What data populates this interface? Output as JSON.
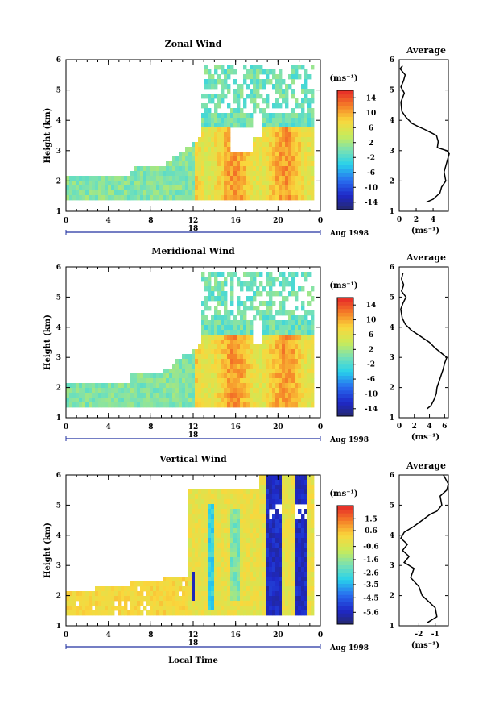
{
  "chart_data": [
    {
      "type": "heatmap",
      "title": "Zonal Wind",
      "ylabel": "Height (km)",
      "ylim": [
        1,
        6
      ],
      "yticks": [
        "1",
        "2",
        "3",
        "4",
        "5",
        "6"
      ],
      "xticks": [
        "0",
        "4",
        "8",
        "12",
        "16",
        "20",
        "0"
      ],
      "date_label": "18",
      "date_suffix": "Aug 1998",
      "colorbar": {
        "unit": "(ms⁻¹)",
        "min": -16,
        "max": 16,
        "ticks": [
          "14",
          "10",
          "6",
          "2",
          "-2",
          "-6",
          "-10",
          "-14"
        ],
        "tick_values": [
          14,
          10,
          6,
          2,
          -2,
          -6,
          -10,
          -14
        ]
      },
      "average_profile": {
        "title": "Average",
        "xlabel": "(ms⁻¹)",
        "xticks": [
          "0",
          "2",
          "4"
        ],
        "xtick_values": [
          0,
          2,
          4
        ],
        "xlim": [
          0,
          5.8
        ],
        "height": [
          1.3,
          1.4,
          1.6,
          1.8,
          2.0,
          2.3,
          2.6,
          2.9,
          3.0,
          3.1,
          3.3,
          3.5,
          3.6,
          3.7,
          3.8,
          3.9,
          4.1,
          4.3,
          4.6,
          4.9,
          5.1,
          5.3,
          5.5,
          5.7,
          5.8
        ],
        "speed": [
          3.2,
          4.0,
          4.8,
          5.0,
          5.5,
          5.3,
          5.6,
          5.9,
          5.6,
          4.5,
          4.6,
          4.4,
          3.7,
          3.0,
          2.2,
          1.5,
          0.8,
          0.3,
          0.2,
          0.6,
          0.2,
          0.5,
          0.7,
          0.1,
          0.4
        ]
      }
    },
    {
      "type": "heatmap",
      "title": "Meridional Wind",
      "ylabel": "Height (km)",
      "ylim": [
        1,
        6
      ],
      "yticks": [
        "1",
        "2",
        "3",
        "4",
        "5",
        "6"
      ],
      "xticks": [
        "0",
        "4",
        "8",
        "12",
        "16",
        "20",
        "0"
      ],
      "date_label": "18",
      "date_suffix": "Aug 1998",
      "colorbar": {
        "unit": "(ms⁻¹)",
        "min": -16,
        "max": 16,
        "ticks": [
          "14",
          "10",
          "6",
          "2",
          "-2",
          "-6",
          "-10",
          "-14"
        ],
        "tick_values": [
          14,
          10,
          6,
          2,
          -2,
          -6,
          -10,
          -14
        ]
      },
      "average_profile": {
        "title": "Average",
        "xlabel": "(ms⁻¹)",
        "xticks": [
          "0",
          "2",
          "4",
          "6"
        ],
        "xtick_values": [
          0,
          2,
          4,
          6
        ],
        "xlim": [
          0,
          6.5
        ],
        "height": [
          1.3,
          1.4,
          1.6,
          1.8,
          2.0,
          2.3,
          2.6,
          2.8,
          3.0,
          3.1,
          3.3,
          3.5,
          3.7,
          3.9,
          4.1,
          4.3,
          4.6,
          4.8,
          5.0,
          5.2,
          5.4,
          5.6,
          5.8
        ],
        "speed": [
          3.7,
          4.2,
          4.6,
          4.9,
          5.0,
          5.4,
          5.8,
          6.0,
          6.3,
          5.8,
          4.8,
          4.0,
          2.8,
          1.6,
          0.8,
          0.4,
          0.2,
          0.5,
          0.9,
          0.3,
          0.6,
          0.3,
          0.5
        ]
      }
    },
    {
      "type": "heatmap",
      "title": "Vertical Wind",
      "ylabel": "Height (km)",
      "xlabel": "Local Time",
      "ylim": [
        1,
        6
      ],
      "yticks": [
        "1",
        "2",
        "3",
        "4",
        "5",
        "6"
      ],
      "xticks": [
        "0",
        "4",
        "8",
        "12",
        "16",
        "20",
        "0"
      ],
      "date_label": "18",
      "date_suffix": "Aug 1998",
      "colorbar": {
        "unit": "(ms⁻¹)",
        "min": -6.5,
        "max": 2.5,
        "ticks": [
          "1.5",
          "0.6",
          "-0.6",
          "-1.6",
          "-2.6",
          "-3.5",
          "-4.5",
          "-5.6"
        ],
        "tick_values": [
          1.5,
          0.6,
          -0.6,
          -1.6,
          -2.6,
          -3.5,
          -4.5,
          -5.6
        ]
      },
      "average_profile": {
        "title": "Average",
        "xlabel": "(ms⁻¹)",
        "xticks": [
          "-2",
          "-1"
        ],
        "xtick_values": [
          -2,
          -1
        ],
        "xlim": [
          -3.2,
          -0.2
        ],
        "height": [
          1.1,
          1.3,
          1.6,
          2.0,
          2.3,
          2.6,
          2.9,
          3.1,
          3.3,
          3.5,
          3.7,
          3.9,
          4.1,
          4.3,
          4.5,
          4.7,
          4.8,
          5.0,
          5.3,
          5.5,
          5.7,
          6.0
        ],
        "speed": [
          -1.5,
          -0.9,
          -1.0,
          -1.8,
          -2.0,
          -2.5,
          -2.3,
          -2.9,
          -2.6,
          -3.0,
          -2.7,
          -3.1,
          -2.9,
          -2.3,
          -1.8,
          -1.3,
          -0.9,
          -0.6,
          -0.7,
          -0.3,
          -0.2,
          -0.5
        ]
      }
    }
  ]
}
